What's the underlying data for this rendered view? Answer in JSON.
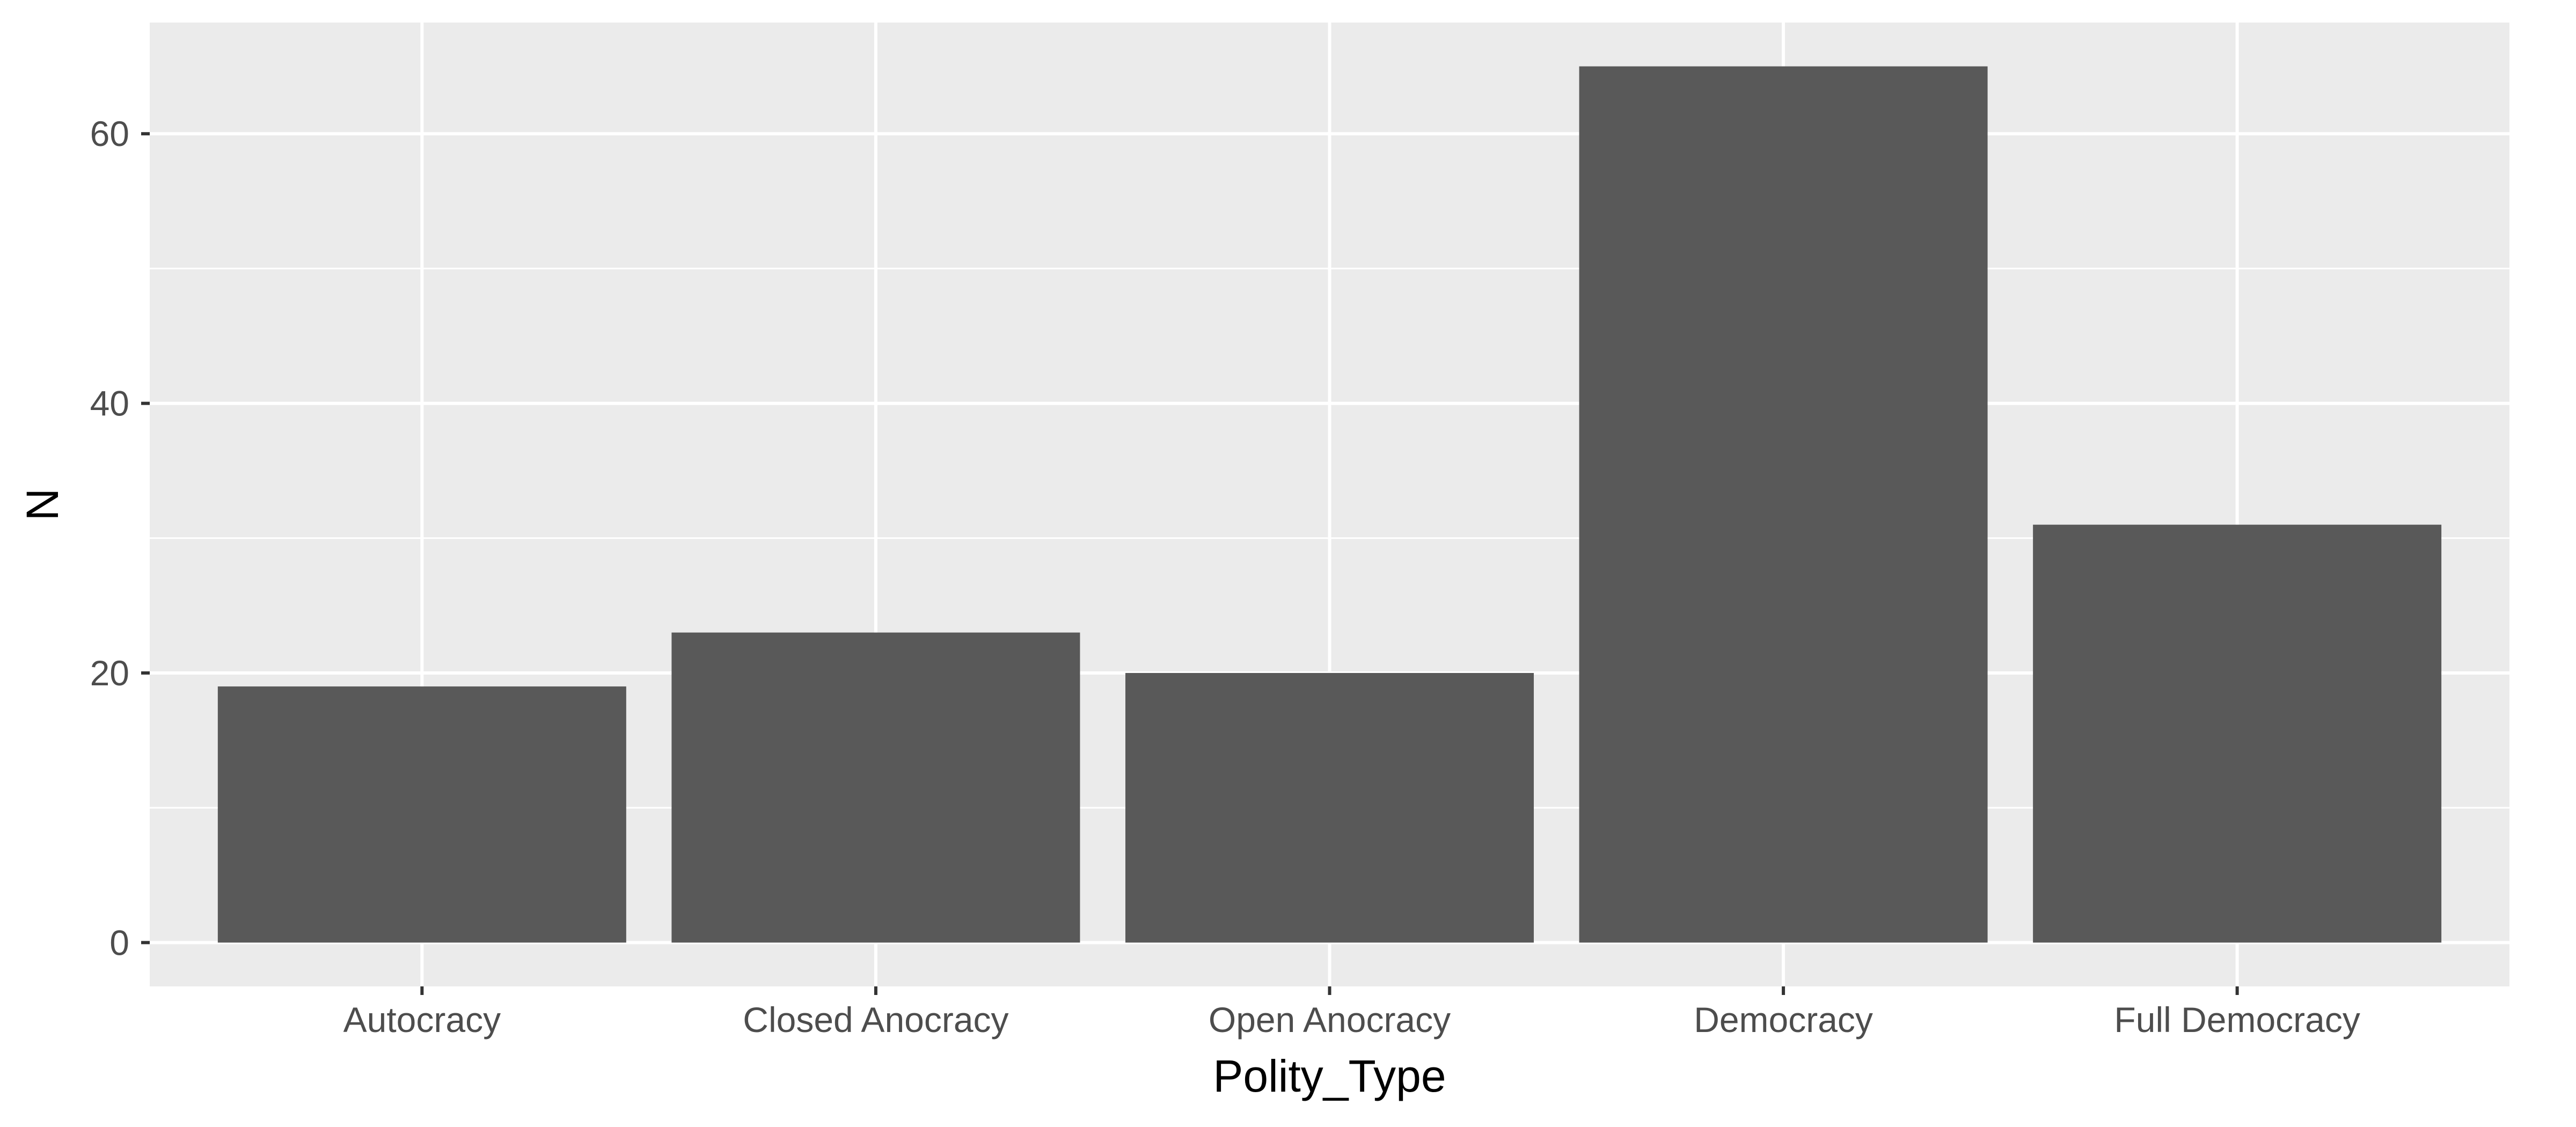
{
  "chart_data": {
    "type": "bar",
    "title": "",
    "xlabel": "Polity_Type",
    "ylabel": "N",
    "categories": [
      "Autocracy",
      "Closed Anocracy",
      "Open Anocracy",
      "Democracy",
      "Full Democracy"
    ],
    "values": [
      19,
      23,
      20,
      65,
      31
    ],
    "ylim": [
      -3.25,
      68.25
    ],
    "yticks": [
      0,
      20,
      40,
      60
    ],
    "grid": true,
    "legend": "none",
    "colors": {
      "bar": "#595959",
      "panel": "#ebebeb",
      "grid": "#ffffff",
      "tick_text": "#4d4d4d",
      "tick_mark": "#333333"
    }
  }
}
